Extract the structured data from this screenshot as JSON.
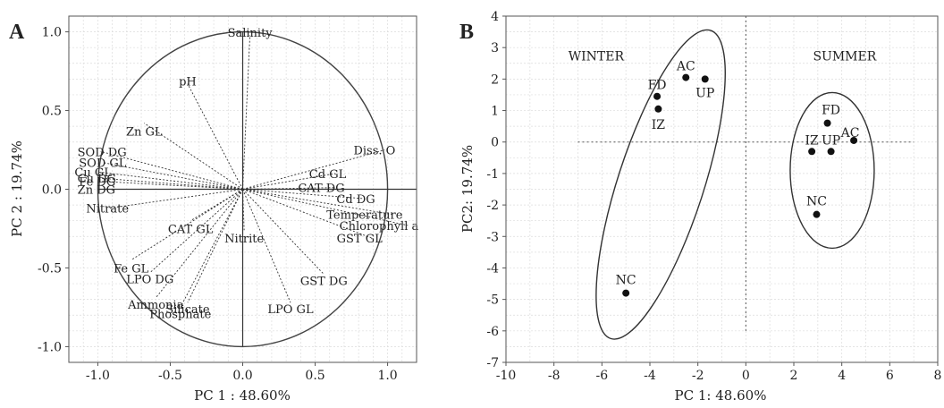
{
  "figure": {
    "panels": [
      "A",
      "B"
    ]
  },
  "chart_data": [
    {
      "type": "scatter",
      "panel": "A",
      "xlabel": "PC 1 : 48.60%",
      "ylabel": "PC 2 : 19.74%",
      "xlim": [
        -1.2,
        1.2
      ],
      "ylim": [
        -1.1,
        1.1
      ],
      "xticks": [
        "-1.0",
        "-0.5",
        "0.0",
        "0.5",
        "1.0"
      ],
      "yticks": [
        "-1.0",
        "-0.5",
        "0.0",
        "0.5",
        "1.0"
      ],
      "xtick_values": [
        -1.0,
        -0.5,
        0.0,
        0.5,
        1.0
      ],
      "ytick_values": [
        -1.0,
        -0.5,
        0.0,
        0.5,
        1.0
      ],
      "grid": true,
      "unit_circle": true,
      "loadings": [
        {
          "label": "Salinity",
          "x": 0.05,
          "y": 0.98
        },
        {
          "label": "pH",
          "x": -0.38,
          "y": 0.67
        },
        {
          "label": "Zn GL",
          "x": -0.68,
          "y": 0.42
        },
        {
          "label": "SOD DG",
          "x": -0.98,
          "y": 0.24
        },
        {
          "label": "SOD GL",
          "x": -0.97,
          "y": 0.17
        },
        {
          "label": "Cu GL",
          "x": -1.0,
          "y": 0.11
        },
        {
          "label": "Cu DG",
          "x": -0.98,
          "y": 0.07
        },
        {
          "label": "Fe DG",
          "x": -0.97,
          "y": 0.05
        },
        {
          "label": "Zn DG",
          "x": -0.98,
          "y": 0.0
        },
        {
          "label": "Nitrate",
          "x": -0.92,
          "y": -0.12
        },
        {
          "label": "CAT GL",
          "x": -0.36,
          "y": -0.2
        },
        {
          "label": "Fe GL",
          "x": -0.77,
          "y": -0.45
        },
        {
          "label": "LPO DG",
          "x": -0.64,
          "y": -0.53
        },
        {
          "label": "Ammonia",
          "x": -0.6,
          "y": -0.69
        },
        {
          "label": "Silicate",
          "x": -0.38,
          "y": -0.72
        },
        {
          "label": "Phosphate",
          "x": -0.43,
          "y": -0.75
        },
        {
          "label": "Nitrite",
          "x": 0.01,
          "y": -0.26
        },
        {
          "label": "Diss. O",
          "x": 0.98,
          "y": 0.25
        },
        {
          "label": "Cd GL",
          "x": 0.64,
          "y": 0.1
        },
        {
          "label": "CAT DG",
          "x": 0.63,
          "y": 0.01
        },
        {
          "label": "Cd DG",
          "x": 0.84,
          "y": -0.06
        },
        {
          "label": "Temperature",
          "x": 1.03,
          "y": -0.16
        },
        {
          "label": "Chlorophyll a",
          "x": 1.14,
          "y": -0.23
        },
        {
          "label": "GST GL",
          "x": 0.89,
          "y": -0.31
        },
        {
          "label": "GST DG",
          "x": 0.56,
          "y": -0.54
        },
        {
          "label": "LPO GL",
          "x": 0.33,
          "y": -0.72
        }
      ]
    },
    {
      "type": "scatter",
      "panel": "B",
      "xlabel": "PC 1: 48.60%",
      "ylabel": "PC2: 19.74%",
      "xlim": [
        -10,
        8
      ],
      "ylim": [
        -7,
        4
      ],
      "xticks": [
        "-10",
        "-8",
        "-6",
        "-4",
        "-2",
        "0",
        "2",
        "4",
        "6",
        "8"
      ],
      "yticks": [
        "4",
        "3",
        "2",
        "1",
        "0",
        "-1",
        "-2",
        "-3",
        "-4",
        "-5",
        "-6",
        "-7"
      ],
      "xtick_values": [
        -10,
        -8,
        -6,
        -4,
        -2,
        0,
        2,
        4,
        6,
        8
      ],
      "ytick_values": [
        4,
        3,
        2,
        1,
        0,
        -1,
        -2,
        -3,
        -4,
        -5,
        -6,
        -7
      ],
      "grid": true,
      "groups": [
        {
          "name": "WINTER",
          "points": [
            {
              "label": "AC",
              "x": -2.5,
              "y": 2.05
            },
            {
              "label": "UP",
              "x": -1.7,
              "y": 2.0
            },
            {
              "label": "FD",
              "x": -3.7,
              "y": 1.45
            },
            {
              "label": "IZ",
              "x": -3.65,
              "y": 1.05
            },
            {
              "label": "NC",
              "x": -5.0,
              "y": -4.8
            }
          ]
        },
        {
          "name": "SUMMER",
          "points": [
            {
              "label": "FD",
              "x": 3.4,
              "y": 0.6
            },
            {
              "label": "AC",
              "x": 4.5,
              "y": 0.05
            },
            {
              "label": "IZ",
              "x": 2.75,
              "y": -0.3
            },
            {
              "label": "UP",
              "x": 3.55,
              "y": -0.3
            },
            {
              "label": "NC",
              "x": 2.95,
              "y": -2.3
            }
          ]
        }
      ]
    }
  ]
}
